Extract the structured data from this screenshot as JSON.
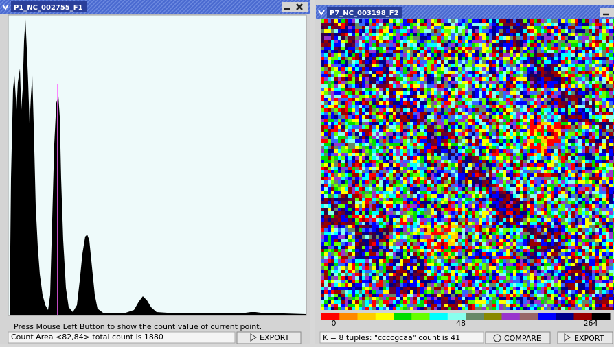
{
  "windows": [
    {
      "title": "P1_NC_002755_F1",
      "status": "Press Mouse Left Button to show the count value of current point.",
      "info": "Count Area <82,84> total count is 1880",
      "buttons": [
        "EXPORT"
      ]
    },
    {
      "title": "P7_NC_003198_F2",
      "legend_labels": [
        "0",
        "48",
        "264"
      ],
      "info": "K = 8 tuples: \"ccccgcaa\" count is 41",
      "buttons": [
        "COMPARE",
        "EXPORT"
      ]
    }
  ]
}
